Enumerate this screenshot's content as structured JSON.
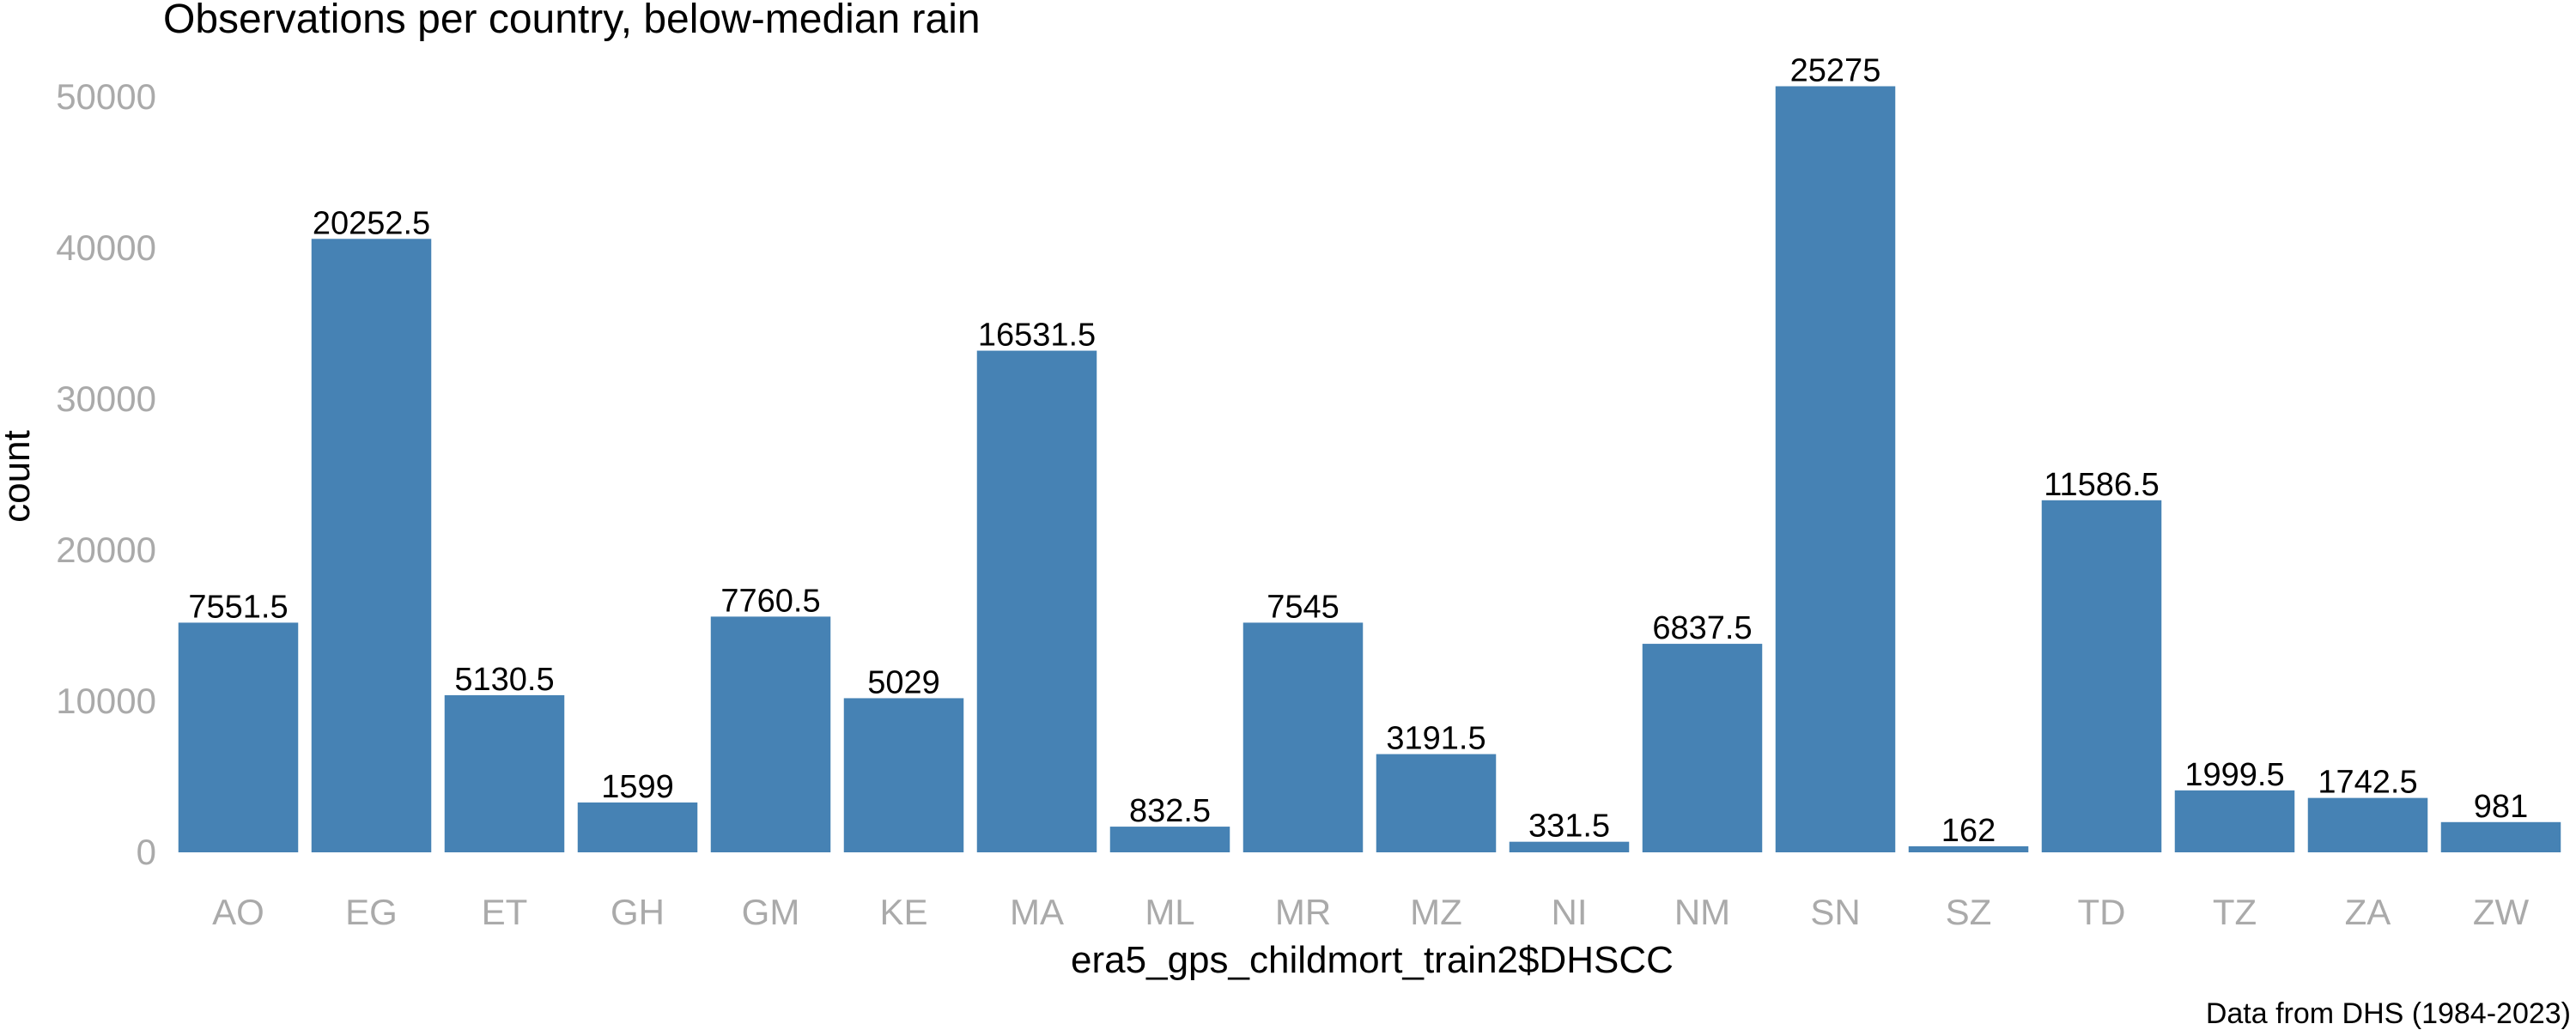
{
  "chart_data": {
    "type": "bar",
    "title": "Observations per country, below-median rain",
    "xlabel": "era5_gps_childmort_train2$DHSCC",
    "ylabel": "count",
    "caption": "Data from DHS (1984-2023)",
    "categories": [
      "AO",
      "EG",
      "ET",
      "GH",
      "GM",
      "KE",
      "MA",
      "ML",
      "MR",
      "MZ",
      "NI",
      "NM",
      "SN",
      "SZ",
      "TD",
      "TZ",
      "ZA",
      "ZW"
    ],
    "values": [
      15200,
      40600,
      10400,
      3300,
      15600,
      10200,
      33200,
      1700,
      15200,
      6500,
      700,
      13800,
      50700,
      400,
      23300,
      4100,
      3600,
      2000
    ],
    "data_labels": [
      "7551.5",
      "20252.5",
      "5130.5",
      "1599",
      "7760.5",
      "5029",
      "16531.5",
      "832.5",
      "7545",
      "3191.5",
      "331.5",
      "6837.5",
      "25275",
      "162",
      "11586.5",
      "1999.5",
      "1742.5",
      "981"
    ],
    "ylim": [
      0,
      53000
    ],
    "yticks": [
      0,
      10000,
      20000,
      30000,
      40000,
      50000
    ],
    "grid": false,
    "legend": "none",
    "bar_color": "#4682b4",
    "tick_color": "#aaaaaa"
  }
}
